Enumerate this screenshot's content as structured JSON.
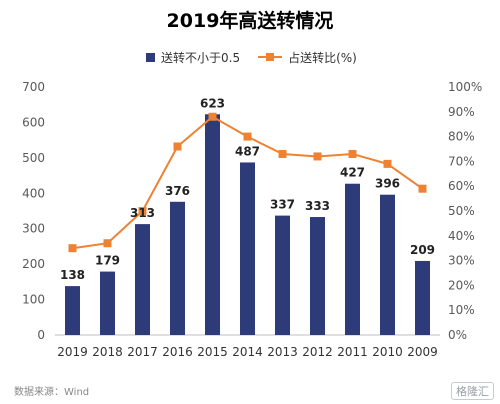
{
  "title": "2019年高送转情况",
  "legend": {
    "bar_label": "送转不小于0.5",
    "line_label": "占送转比(%)"
  },
  "source": "数据来源：Wind",
  "logo_text": "格隆汇",
  "colors": {
    "bar": "#2d3b79",
    "line": "#ee8232",
    "axis": "#595959",
    "grid": "#d9d9d9"
  },
  "chart_data": {
    "type": "bar",
    "title": "2019年高送转情况",
    "categories": [
      "2019",
      "2018",
      "2017",
      "2016",
      "2015",
      "2014",
      "2013",
      "2012",
      "2011",
      "2010",
      "2009"
    ],
    "series": [
      {
        "name": "送转不小于0.5",
        "type": "bar",
        "axis": "left",
        "values": [
          138,
          179,
          313,
          376,
          623,
          487,
          337,
          333,
          427,
          396,
          209
        ],
        "labels": [
          "138",
          "179",
          "313",
          "376",
          "623",
          "487",
          "337",
          "333",
          "427",
          "396",
          "209"
        ]
      },
      {
        "name": "占送转比(%)",
        "type": "line",
        "axis": "right",
        "values": [
          35,
          37,
          50,
          76,
          88,
          80,
          73,
          72,
          73,
          69,
          59
        ]
      }
    ],
    "ylim_left": [
      0,
      700
    ],
    "yticks_left": [
      "0",
      "100",
      "200",
      "300",
      "400",
      "500",
      "600",
      "700"
    ],
    "ylim_right": [
      0,
      100
    ],
    "yticks_right": [
      "0%",
      "10%",
      "20%",
      "30%",
      "40%",
      "50%",
      "60%",
      "70%",
      "80%",
      "90%",
      "100%"
    ],
    "grid": false,
    "legend_position": "top-center"
  }
}
